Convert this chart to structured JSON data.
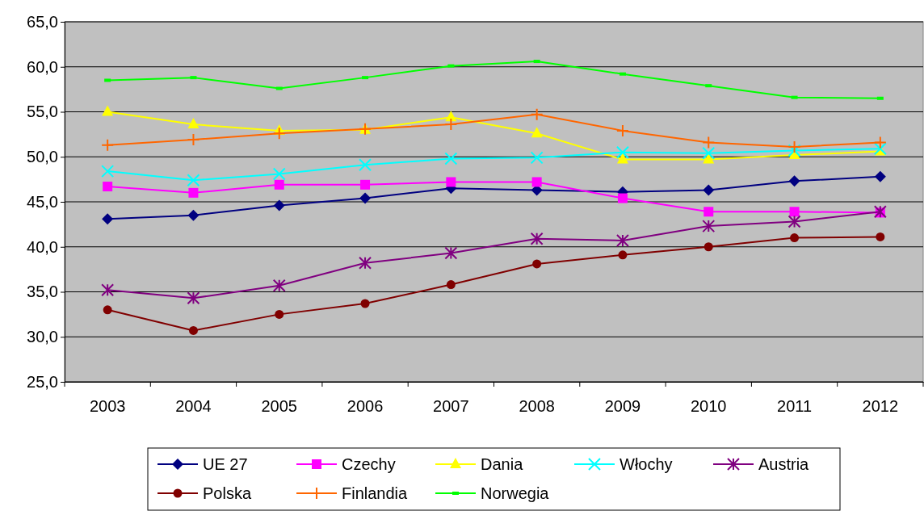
{
  "chart_data": {
    "type": "line",
    "categories": [
      "2003",
      "2004",
      "2005",
      "2006",
      "2007",
      "2008",
      "2009",
      "2010",
      "2011",
      "2012"
    ],
    "ylim": [
      25,
      65
    ],
    "yticks": [
      {
        "value": 25,
        "label": "25,0"
      },
      {
        "value": 30,
        "label": "30,0"
      },
      {
        "value": 35,
        "label": "35,0"
      },
      {
        "value": 40,
        "label": "40,0"
      },
      {
        "value": 45,
        "label": "45,0"
      },
      {
        "value": 50,
        "label": "50,0"
      },
      {
        "value": 55,
        "label": "55,0"
      },
      {
        "value": 60,
        "label": "60,0"
      },
      {
        "value": 65,
        "label": "65,0"
      }
    ],
    "grid": "y",
    "legend": "bottom",
    "line_style": "solid",
    "series": [
      {
        "name": "UE 27",
        "color": "#000080",
        "marker": "diamond",
        "values": [
          43.1,
          43.5,
          44.6,
          45.4,
          46.5,
          46.3,
          46.1,
          46.3,
          47.3,
          47.8
        ]
      },
      {
        "name": "Czechy",
        "color": "#ff00ff",
        "marker": "square",
        "values": [
          46.7,
          46.0,
          46.9,
          46.9,
          47.2,
          47.2,
          45.4,
          43.9,
          43.9,
          43.8
        ]
      },
      {
        "name": "Dania",
        "color": "#ffff00",
        "marker": "triangle",
        "values": [
          55.0,
          53.6,
          52.9,
          53.0,
          54.4,
          52.6,
          49.7,
          49.7,
          50.2,
          50.6
        ]
      },
      {
        "name": "Włochy",
        "color": "#00ffff",
        "marker": "cross",
        "values": [
          48.4,
          47.4,
          48.1,
          49.1,
          49.8,
          49.9,
          50.5,
          50.4,
          50.7,
          50.9
        ]
      },
      {
        "name": "Austria",
        "color": "#800080",
        "marker": "cross",
        "values": [
          35.2,
          34.3,
          35.7,
          38.2,
          39.3,
          40.9,
          40.7,
          42.3,
          42.8,
          43.9
        ]
      },
      {
        "name": "Polska",
        "color": "#800000",
        "marker": "circle",
        "values": [
          33.0,
          30.7,
          32.5,
          33.7,
          35.8,
          38.1,
          39.1,
          40.0,
          41.0,
          41.1
        ]
      },
      {
        "name": "Finlandia",
        "color": "#ff6600",
        "marker": "plus",
        "values": [
          51.3,
          51.9,
          52.6,
          53.1,
          53.6,
          54.7,
          52.9,
          51.6,
          51.1,
          51.6
        ]
      },
      {
        "name": "Norwegia",
        "color": "#00ff00",
        "marker": "square",
        "values": [
          58.5,
          58.8,
          57.6,
          58.8,
          60.1,
          60.6,
          59.2,
          57.9,
          56.6,
          56.5
        ]
      }
    ]
  }
}
